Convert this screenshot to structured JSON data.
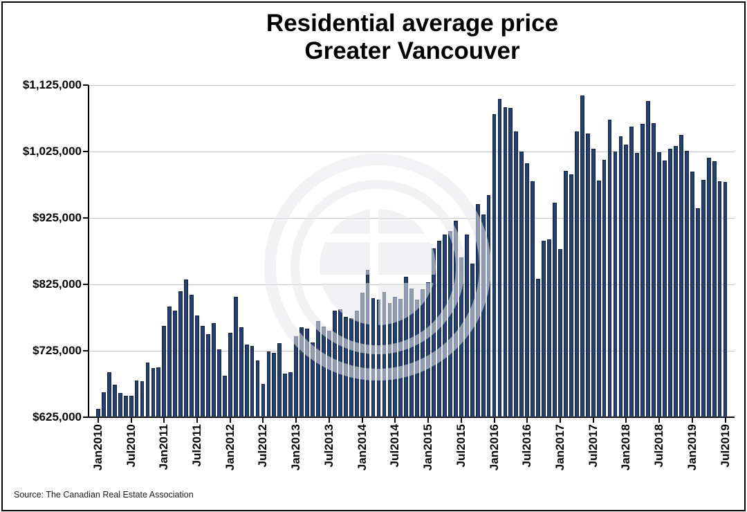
{
  "title": {
    "line1": "Residential average price",
    "line2": "Greater Vancouver"
  },
  "source_note": "Source: The Canadian Real Estate Association",
  "y_axis": {
    "tick_labels": [
      "$1,125,000",
      "$1,025,000",
      "$925,000",
      "$825,000",
      "$725,000",
      "$625,000"
    ]
  },
  "x_axis": {
    "tick_labels": [
      "Jan2010",
      "Jul2010",
      "Jan2011",
      "Jul2011",
      "Jan2012",
      "Jul2012",
      "Jan2013",
      "Jul2013",
      "Jan2014",
      "Jul2014",
      "Jan2015",
      "Jul2015",
      "Jan2016",
      "Jul2016",
      "Jan2017",
      "Jul2017",
      "Jan2018",
      "Jul2018",
      "Jan2019",
      "Jul2019"
    ]
  },
  "watermark": {
    "name": "crea-circular-logo-watermark",
    "color": "#e9e9ec"
  },
  "chart_data": {
    "type": "bar",
    "title": "Residential average price Greater Vancouver",
    "xlabel": "",
    "ylabel": "",
    "ylim": [
      625000,
      1125000
    ],
    "y_tick_step": 100000,
    "grid": "horizontal",
    "legend": "none",
    "bar_color": "#23406f",
    "bar_border_color": "#0e2145",
    "gridline_color": "#c4c4c4",
    "x": [
      "Jan2010",
      "Feb2010",
      "Mar2010",
      "Apr2010",
      "May2010",
      "Jun2010",
      "Jul2010",
      "Aug2010",
      "Sep2010",
      "Oct2010",
      "Nov2010",
      "Dec2010",
      "Jan2011",
      "Feb2011",
      "Mar2011",
      "Apr2011",
      "May2011",
      "Jun2011",
      "Jul2011",
      "Aug2011",
      "Sep2011",
      "Oct2011",
      "Nov2011",
      "Dec2011",
      "Jan2012",
      "Feb2012",
      "Mar2012",
      "Apr2012",
      "May2012",
      "Jun2012",
      "Jul2012",
      "Aug2012",
      "Sep2012",
      "Oct2012",
      "Nov2012",
      "Dec2012",
      "Jan2013",
      "Feb2013",
      "Mar2013",
      "Apr2013",
      "May2013",
      "Jun2013",
      "Jul2013",
      "Aug2013",
      "Sep2013",
      "Oct2013",
      "Nov2013",
      "Dec2013",
      "Jan2014",
      "Feb2014",
      "Mar2014",
      "Apr2014",
      "May2014",
      "Jun2014",
      "Jul2014",
      "Aug2014",
      "Sep2014",
      "Oct2014",
      "Nov2014",
      "Dec2014",
      "Jan2015",
      "Feb2015",
      "Mar2015",
      "Apr2015",
      "May2015",
      "Jun2015",
      "Jul2015",
      "Aug2015",
      "Sep2015",
      "Oct2015",
      "Nov2015",
      "Dec2015",
      "Jan2016",
      "Feb2016",
      "Mar2016",
      "Apr2016",
      "May2016",
      "Jun2016",
      "Jul2016",
      "Aug2016",
      "Sep2016",
      "Oct2016",
      "Nov2016",
      "Dec2016",
      "Jan2017",
      "Feb2017",
      "Mar2017",
      "Apr2017",
      "May2017",
      "Jun2017",
      "Jul2017",
      "Aug2017",
      "Sep2017",
      "Oct2017",
      "Nov2017",
      "Dec2017",
      "Jan2018",
      "Feb2018",
      "Mar2018",
      "Apr2018",
      "May2018",
      "Jun2018",
      "Jul2018",
      "Aug2018",
      "Sep2018",
      "Oct2018",
      "Nov2018",
      "Dec2018",
      "Jan2019",
      "Feb2019",
      "Mar2019",
      "Apr2019",
      "May2019",
      "Jun2019",
      "Jul2019"
    ],
    "values": [
      637000,
      662000,
      693000,
      674000,
      661000,
      657000,
      657000,
      680000,
      679000,
      707000,
      699000,
      700000,
      762000,
      792000,
      785000,
      815000,
      832000,
      809000,
      778000,
      762000,
      750000,
      767000,
      727000,
      688000,
      752000,
      806000,
      760000,
      734000,
      732000,
      710000,
      675000,
      724000,
      722000,
      736000,
      691000,
      693000,
      747000,
      760000,
      758000,
      738000,
      770000,
      761000,
      755000,
      785000,
      788000,
      776000,
      774000,
      785000,
      813000,
      847000,
      804000,
      802000,
      814000,
      797000,
      806000,
      803000,
      836000,
      819000,
      802000,
      818000,
      828000,
      879000,
      891000,
      900000,
      905000,
      921000,
      866000,
      900000,
      856000,
      946000,
      930000,
      959000,
      1081000,
      1104000,
      1092000,
      1091000,
      1055000,
      1025000,
      1007000,
      980000,
      833000,
      891000,
      893000,
      948000,
      878000,
      996000,
      991000,
      1055000,
      1109000,
      1052000,
      1029000,
      981000,
      1012000,
      1073000,
      1025000,
      1048000,
      1035000,
      1063000,
      1023000,
      1067000,
      1101000,
      1068000,
      1024000,
      1011000,
      1029000,
      1033000,
      1050000,
      1026000,
      995000,
      940000,
      982000,
      1016000,
      1010000,
      980000,
      979000
    ]
  }
}
